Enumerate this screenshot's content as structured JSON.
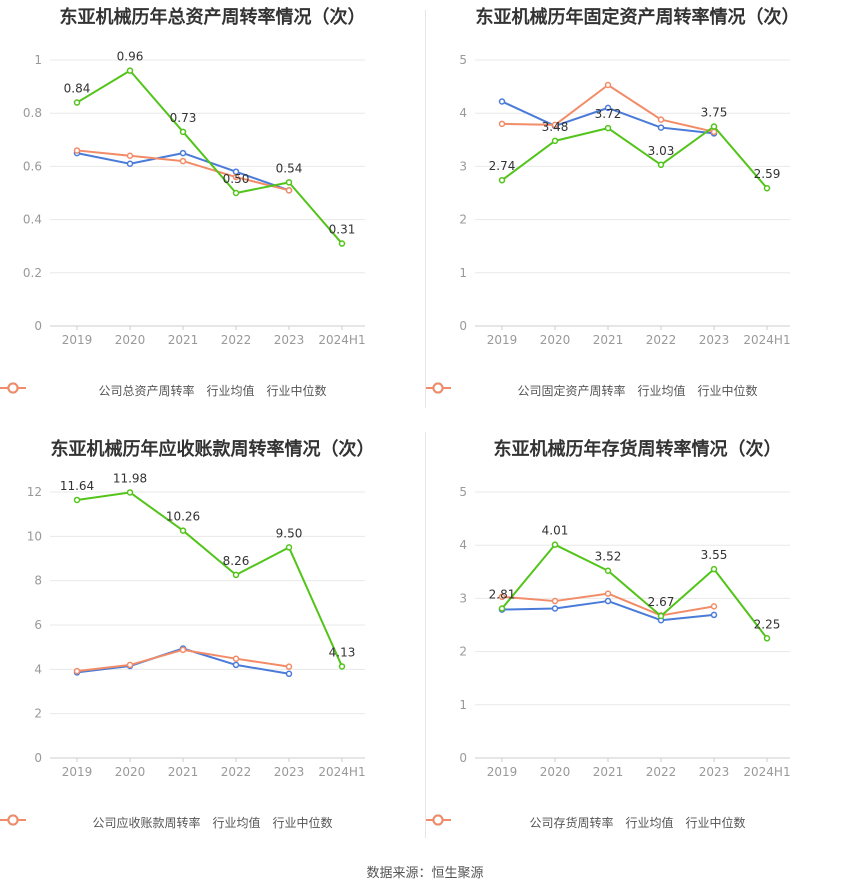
{
  "source": "数据来源：恒生聚源",
  "colors": {
    "company": "#52c41a",
    "avg": "#4a7bd9",
    "median": "#f28c68",
    "grid": "#e8e8e8",
    "axis": "#999999"
  },
  "legend_labels": {
    "avg": "行业均值",
    "median": "行业中位数"
  },
  "chart_data": [
    {
      "type": "line",
      "title": "东亚机械历年总资产周转率情况（次）",
      "categories": [
        "2019",
        "2020",
        "2021",
        "2022",
        "2023",
        "2024H1"
      ],
      "ylim": [
        0,
        1
      ],
      "yticks": [
        "0",
        "0.2",
        "0.4",
        "0.6",
        "0.8",
        "1"
      ],
      "ytick_values": [
        0,
        0.2,
        0.4,
        0.6,
        0.8,
        1
      ],
      "grid": true,
      "legend_position": "bottom",
      "series": [
        {
          "name": "公司总资产周转率",
          "key": "company",
          "values": [
            0.84,
            0.96,
            0.73,
            0.5,
            0.54,
            0.31
          ],
          "labels": [
            "0.84",
            "0.96",
            "0.73",
            "0.50",
            "0.54",
            "0.31"
          ]
        },
        {
          "name": "行业均值",
          "key": "avg",
          "values": [
            0.65,
            0.61,
            0.65,
            0.58,
            0.51,
            null
          ]
        },
        {
          "name": "行业中位数",
          "key": "median",
          "values": [
            0.66,
            0.64,
            0.62,
            0.56,
            0.51,
            null
          ]
        }
      ]
    },
    {
      "type": "line",
      "title": "东亚机械历年固定资产周转率情况（次）",
      "categories": [
        "2019",
        "2020",
        "2021",
        "2022",
        "2023",
        "2024H1"
      ],
      "ylim": [
        0,
        5
      ],
      "yticks": [
        "0",
        "1",
        "2",
        "3",
        "4",
        "5"
      ],
      "ytick_values": [
        0,
        1,
        2,
        3,
        4,
        5
      ],
      "grid": true,
      "legend_position": "bottom",
      "series": [
        {
          "name": "公司固定资产周转率",
          "key": "company",
          "values": [
            2.74,
            3.48,
            3.72,
            3.03,
            3.75,
            2.59
          ],
          "labels": [
            "2.74",
            "3.48",
            "3.72",
            "3.03",
            "3.75",
            "2.59"
          ]
        },
        {
          "name": "行业均值",
          "key": "avg",
          "values": [
            4.22,
            3.76,
            4.1,
            3.73,
            3.62,
            null
          ]
        },
        {
          "name": "行业中位数",
          "key": "median",
          "values": [
            3.8,
            3.78,
            4.53,
            3.88,
            3.65,
            null
          ]
        }
      ]
    },
    {
      "type": "line",
      "title": "东亚机械历年应收账款周转率情况（次）",
      "categories": [
        "2019",
        "2020",
        "2021",
        "2022",
        "2023",
        "2024H1"
      ],
      "ylim": [
        0,
        12
      ],
      "yticks": [
        "0",
        "2",
        "4",
        "6",
        "8",
        "10",
        "12"
      ],
      "ytick_values": [
        0,
        2,
        4,
        6,
        8,
        10,
        12
      ],
      "grid": true,
      "legend_position": "bottom",
      "series": [
        {
          "name": "公司应收账款周转率",
          "key": "company",
          "values": [
            11.64,
            11.98,
            10.26,
            8.26,
            9.5,
            4.13
          ],
          "labels": [
            "11.64",
            "11.98",
            "10.26",
            "8.26",
            "9.50",
            "4.13"
          ]
        },
        {
          "name": "行业均值",
          "key": "avg",
          "values": [
            3.86,
            4.15,
            4.94,
            4.2,
            3.8,
            null
          ]
        },
        {
          "name": "行业中位数",
          "key": "median",
          "values": [
            3.92,
            4.2,
            4.88,
            4.48,
            4.12,
            null
          ]
        }
      ]
    },
    {
      "type": "line",
      "title": "东亚机械历年存货周转率情况（次）",
      "categories": [
        "2019",
        "2020",
        "2021",
        "2022",
        "2023",
        "2024H1"
      ],
      "ylim": [
        0,
        5
      ],
      "yticks": [
        "0",
        "1",
        "2",
        "3",
        "4",
        "5"
      ],
      "ytick_values": [
        0,
        1,
        2,
        3,
        4,
        5
      ],
      "grid": true,
      "legend_position": "bottom",
      "series": [
        {
          "name": "公司存货周转率",
          "key": "company",
          "values": [
            2.81,
            4.01,
            3.52,
            2.67,
            3.55,
            2.25
          ],
          "labels": [
            "2.81",
            "4.01",
            "3.52",
            "2.67",
            "3.55",
            "2.25"
          ]
        },
        {
          "name": "行业均值",
          "key": "avg",
          "values": [
            2.79,
            2.81,
            2.95,
            2.59,
            2.69,
            null
          ]
        },
        {
          "name": "行业中位数",
          "key": "median",
          "values": [
            3.03,
            2.95,
            3.09,
            2.68,
            2.85,
            null
          ]
        }
      ]
    }
  ]
}
